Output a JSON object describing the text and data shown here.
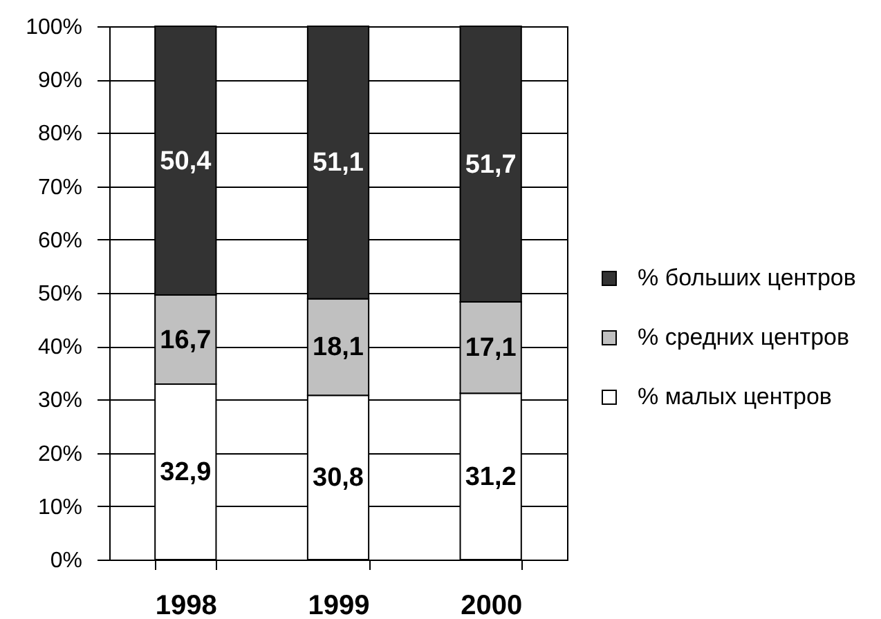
{
  "chart_data": {
    "type": "bar",
    "stacked": true,
    "categories": [
      "1998",
      "1999",
      "2000"
    ],
    "series": [
      {
        "name": "% малых центров",
        "color": "#ffffff",
        "values": [
          32.9,
          30.8,
          31.2
        ],
        "value_labels": [
          "32,9",
          "30,8",
          "31,2"
        ]
      },
      {
        "name": "% средних центров",
        "color": "#c0c0c0",
        "values": [
          16.7,
          18.1,
          17.1
        ],
        "value_labels": [
          "16,7",
          "18,1",
          "17,1"
        ]
      },
      {
        "name": "% больших центров",
        "color": "#333333",
        "values": [
          50.4,
          51.1,
          51.7
        ],
        "value_labels": [
          "50,4",
          "51,1",
          "51,7"
        ]
      }
    ],
    "ylim": [
      0,
      100
    ],
    "yticks": [
      {
        "value": 0,
        "label": "0%"
      },
      {
        "value": 10,
        "label": "10%"
      },
      {
        "value": 20,
        "label": "20%"
      },
      {
        "value": 30,
        "label": "30%"
      },
      {
        "value": 40,
        "label": "40%"
      },
      {
        "value": 50,
        "label": "50%"
      },
      {
        "value": 60,
        "label": "60%"
      },
      {
        "value": 70,
        "label": "70%"
      },
      {
        "value": 80,
        "label": "80%"
      },
      {
        "value": 90,
        "label": "90%"
      },
      {
        "value": 100,
        "label": "100%"
      }
    ],
    "grid": "y",
    "legend": "right"
  }
}
